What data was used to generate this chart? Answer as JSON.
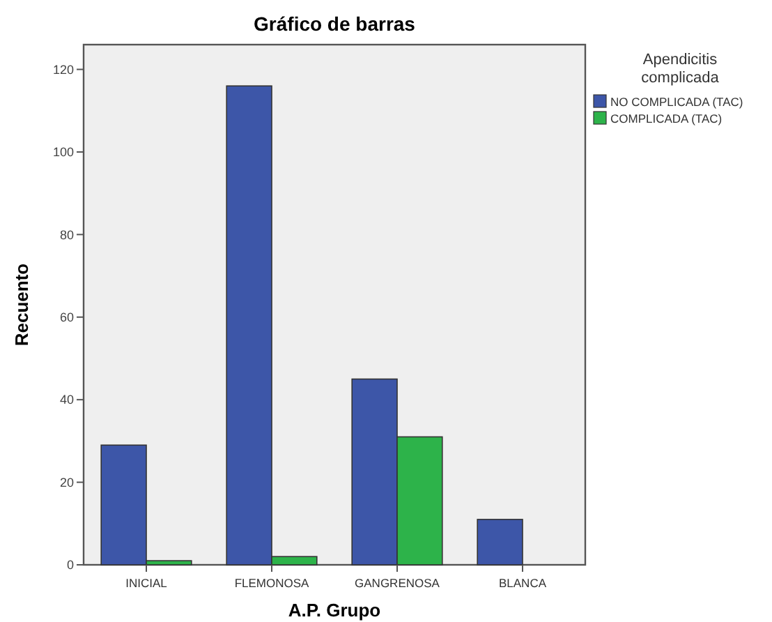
{
  "chart_data": {
    "type": "bar",
    "title": "Gráfico de barras",
    "xlabel": "A.P. Grupo",
    "ylabel": "Recuento",
    "legend_title": "Apendicitis complicada",
    "categories": [
      "INICIAL",
      "FLEMONOSA",
      "GANGRENOSA",
      "BLANCA"
    ],
    "series": [
      {
        "name": "NO COMPLICADA (TAC)",
        "color": "#3d56a8",
        "values": [
          29,
          116,
          45,
          11
        ]
      },
      {
        "name": "COMPLICADA (TAC)",
        "color": "#2db34a",
        "values": [
          1,
          2,
          31,
          0
        ]
      }
    ],
    "ylim": [
      0,
      126
    ],
    "yticks": [
      0,
      20,
      40,
      60,
      80,
      100,
      120
    ],
    "grid": false,
    "legend": "top right"
  }
}
